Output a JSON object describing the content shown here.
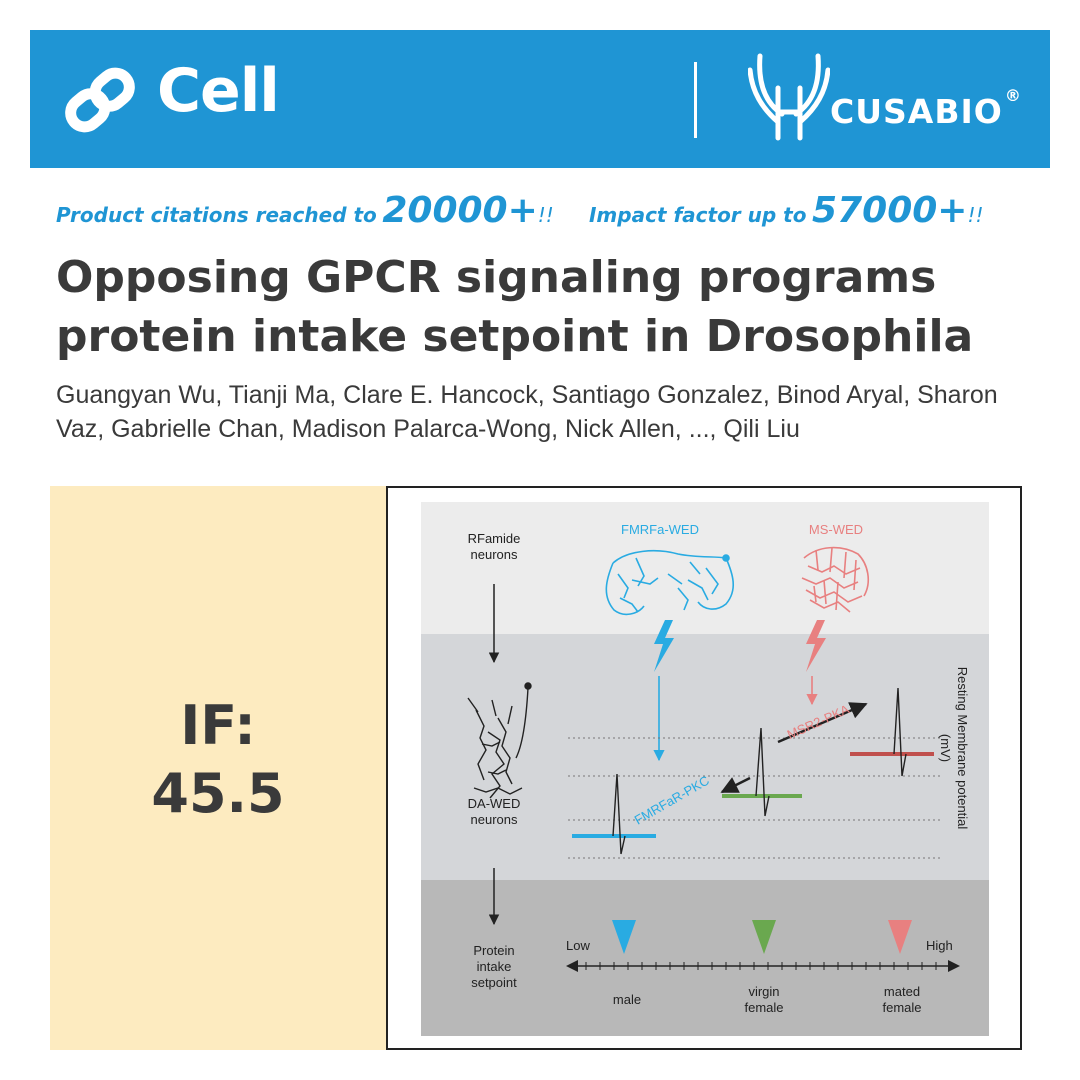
{
  "header": {
    "journal": "Cell",
    "partner": "CUSABIO",
    "partner_reg": "®"
  },
  "stats": {
    "citations_prefix": "Product citations reached to",
    "citations_value": "20000+",
    "citations_suffix": "!!",
    "impact_prefix": "Impact factor up to",
    "impact_value": "57000+",
    "impact_suffix": "!!"
  },
  "article": {
    "title": "Opposing GPCR signaling programs protein intake setpoint in Drosophila",
    "authors": "Guangyan Wu, Tianji Ma, Clare E. Hancock, Santiago Gonzalez, Binod Aryal, Sharon Vaz, Gabrielle Chan, Madison Palarca-Wong, Nick Allen, ..., Qili Liu"
  },
  "impact_factor": {
    "label": "IF:",
    "value": "45.5"
  },
  "figure": {
    "labels": {
      "rfamide": [
        "RFamide",
        "neurons"
      ],
      "fmrfa_wed": "FMRFa-WED",
      "ms_wed": "MS-WED",
      "da_wed": [
        "DA-WED",
        "neurons"
      ],
      "protein": [
        "Protein",
        "intake",
        "setpoint"
      ],
      "fmrfar_pkc": "FMRFaR-PKC",
      "msr2_pka": "MSR2-PKA",
      "resting": "Resting Membrane potential",
      "mv": "(mV)",
      "low": "Low",
      "high": "High",
      "male": "male",
      "virgin_female": [
        "virgin",
        "female"
      ],
      "mated_female": [
        "mated",
        "female"
      ]
    },
    "colors": {
      "blue": "#29abe2",
      "green": "#6aa84f",
      "red": "#e88080",
      "dark_red": "#c0504d",
      "band_top": "#ececec",
      "band_mid": "#d4d6d9",
      "band_bottom": "#b8b8b8"
    }
  }
}
